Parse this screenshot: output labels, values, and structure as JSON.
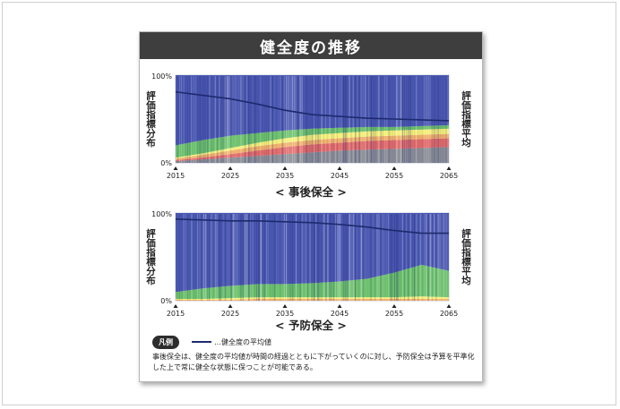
{
  "title": "健全度の推移",
  "chart_data": [
    {
      "type": "area",
      "caption": "< 事後保全 >",
      "ylabel_left": "評価指標分布",
      "ylabel_right": "評価指標平均",
      "ytick_labels": [
        "100%",
        "0%"
      ],
      "ylim": [
        0,
        100
      ],
      "xlim": [
        2015,
        2065
      ],
      "x_ticks": [
        2015,
        2025,
        2035,
        2045,
        2055,
        2065
      ],
      "x": [
        2015,
        2020,
        2025,
        2030,
        2035,
        2040,
        2045,
        2050,
        2055,
        2060,
        2065
      ],
      "series": [
        {
          "color": "#8a8d96",
          "values": [
            2,
            4,
            6,
            8,
            10,
            12,
            14,
            15,
            16,
            17,
            18
          ]
        },
        {
          "color": "#e06a6a",
          "values": [
            1,
            2,
            4,
            6,
            8,
            9,
            9,
            10,
            10,
            10,
            10
          ]
        },
        {
          "color": "#efae6a",
          "values": [
            2,
            3,
            4,
            5,
            5,
            5,
            5,
            5,
            5,
            5,
            5
          ]
        },
        {
          "color": "#f4ee78",
          "values": [
            1,
            2,
            3,
            4,
            5,
            6,
            6,
            6,
            6,
            6,
            6
          ]
        },
        {
          "color": "#6bbf6b",
          "values": [
            14,
            15,
            14,
            11,
            9,
            7,
            6,
            5,
            4,
            4,
            4
          ]
        },
        {
          "color": "#4a57b0",
          "values": [
            80,
            74,
            69,
            66,
            63,
            61,
            60,
            59,
            59,
            58,
            57
          ]
        }
      ],
      "mean_line": {
        "color": "#1e2a6e",
        "values": [
          81,
          77,
          73,
          67,
          60,
          55,
          53,
          51,
          50,
          49,
          48
        ]
      }
    },
    {
      "type": "area",
      "caption": "< 予防保全 >",
      "ylabel_left": "評価指標分布",
      "ylabel_right": "評価指標平均",
      "ytick_labels": [
        "100%",
        "0%"
      ],
      "ylim": [
        0,
        100
      ],
      "xlim": [
        2015,
        2065
      ],
      "x_ticks": [
        2015,
        2025,
        2035,
        2045,
        2055,
        2065
      ],
      "x": [
        2015,
        2020,
        2025,
        2030,
        2035,
        2040,
        2045,
        2050,
        2055,
        2060,
        2065
      ],
      "series": [
        {
          "color": "#8a8d96",
          "values": [
            0,
            0,
            0,
            0,
            0,
            0,
            0,
            0,
            0,
            0,
            0
          ]
        },
        {
          "color": "#e06a6a",
          "values": [
            0,
            0,
            0,
            0,
            0,
            0,
            0,
            0,
            0,
            0,
            0
          ]
        },
        {
          "color": "#efae6a",
          "values": [
            1,
            1,
            1,
            2,
            2,
            2,
            2,
            2,
            2,
            2,
            2
          ]
        },
        {
          "color": "#f4ee78",
          "values": [
            1,
            1,
            2,
            2,
            2,
            2,
            2,
            2,
            2,
            3,
            2
          ]
        },
        {
          "color": "#6bbf6b",
          "values": [
            8,
            12,
            14,
            15,
            15,
            16,
            18,
            21,
            28,
            36,
            30
          ]
        },
        {
          "color": "#4a57b0",
          "values": [
            90,
            86,
            83,
            81,
            81,
            80,
            78,
            75,
            68,
            59,
            66
          ]
        }
      ],
      "mean_line": {
        "color": "#1e2a6e",
        "values": [
          93,
          92,
          91,
          91,
          90,
          89,
          87,
          84,
          80,
          77,
          77
        ]
      }
    }
  ],
  "legend": {
    "badge": "凡例",
    "line_label": "…健全度の平均値"
  },
  "note": "事後保全は、健全度の平均値が時間の経過とともに下がっていくのに対し、予防保全は予算を平準化した上で常に健全な状態に保つことが可能である。"
}
